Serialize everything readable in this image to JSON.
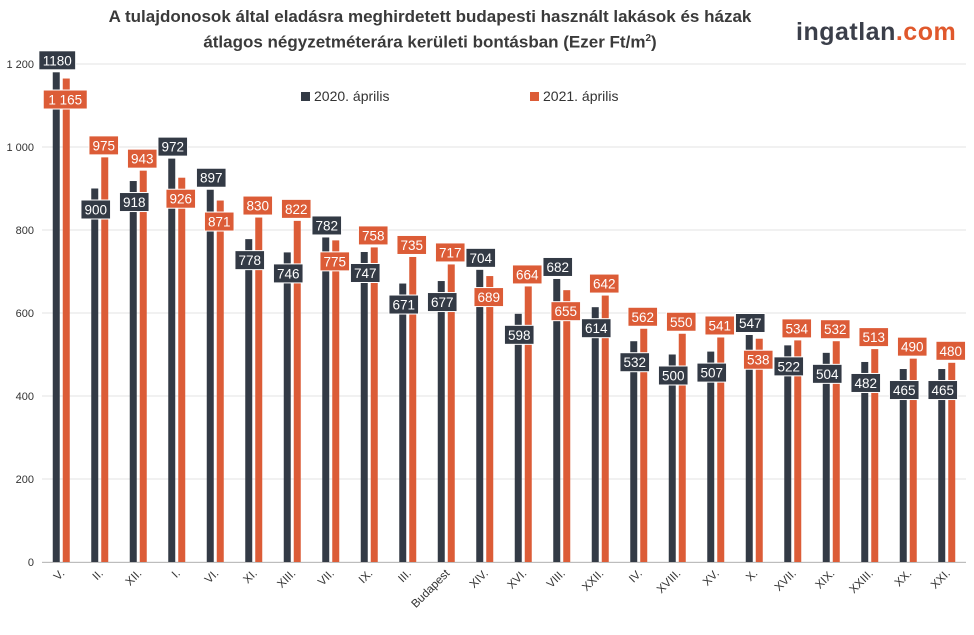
{
  "title_line1": "A tulajdonosok által eladásra meghirdetett budapesti használt lakások és házak",
  "title_line2_prefix": "átlagos négyzetméterára kerületi bontásban (Ezer Ft/m",
  "title_line2_sup": "2",
  "title_line2_suffix": ")",
  "brand": {
    "part1": "ingatlan",
    "dot": ".",
    "part2": "com"
  },
  "colors": {
    "series_2020": "#333a45",
    "series_2021": "#dc5c37",
    "grid": "#e3e3e3"
  },
  "chart_data": {
    "type": "bar",
    "title": "A tulajdonosok által eladásra meghirdetett budapesti használt lakások és házak átlagos négyzetméterára kerületi bontásban (Ezer Ft/m2)",
    "xlabel": "",
    "ylabel": "",
    "ylim": [
      0,
      1200
    ],
    "yticks": [
      0,
      200,
      400,
      600,
      800,
      1000,
      1200
    ],
    "ytick_labels": [
      "0",
      "200",
      "400",
      "600",
      "800",
      "1 000",
      "1 200"
    ],
    "grid": true,
    "legend_position": "top",
    "categories": [
      "V.",
      "II.",
      "XII.",
      "I.",
      "VI.",
      "XI.",
      "XIII.",
      "VII.",
      "IX.",
      "III.",
      "Budapest",
      "XIV.",
      "XVI.",
      "VIII.",
      "XXII.",
      "IV.",
      "XVIII.",
      "XV.",
      "X.",
      "XVII.",
      "XIX.",
      "XXIII.",
      "XX.",
      "XXI."
    ],
    "series": [
      {
        "name": "2020. április",
        "values": [
          1180,
          900,
          918,
          972,
          897,
          778,
          746,
          782,
          747,
          671,
          677,
          704,
          598,
          682,
          614,
          532,
          500,
          507,
          547,
          522,
          504,
          482,
          465,
          465
        ],
        "labels": [
          "1180",
          "900",
          "918",
          "972",
          "897",
          "778",
          "746",
          "782",
          "747",
          "671",
          "677",
          "704",
          "598",
          "682",
          "614",
          "532",
          "500",
          "507",
          "547",
          "522",
          "504",
          "482",
          "465",
          "465"
        ]
      },
      {
        "name": "2021. április",
        "values": [
          1165,
          975,
          943,
          926,
          871,
          830,
          822,
          775,
          758,
          735,
          717,
          689,
          664,
          655,
          642,
          562,
          550,
          541,
          538,
          534,
          532,
          513,
          490,
          480
        ],
        "labels": [
          "1 165",
          "975",
          "943",
          "926",
          "871",
          "830",
          "822",
          "775",
          "758",
          "735",
          "717",
          "689",
          "664",
          "655",
          "642",
          "562",
          "550",
          "541",
          "538",
          "534",
          "532",
          "513",
          "490",
          "480"
        ]
      }
    ]
  }
}
